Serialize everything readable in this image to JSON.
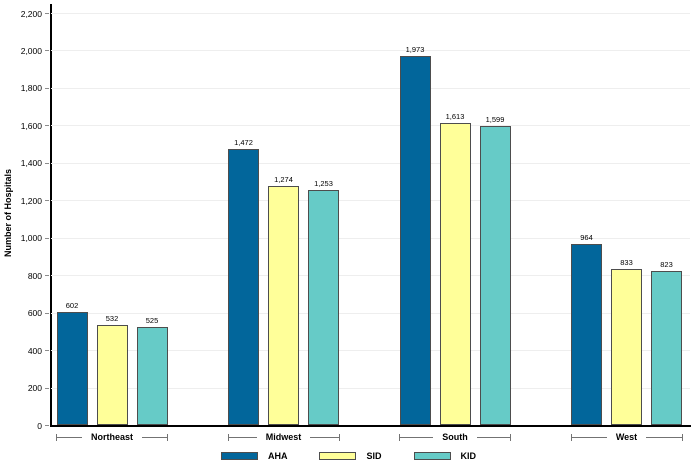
{
  "chart_data": {
    "type": "bar",
    "title": "",
    "xlabel": "",
    "ylabel": "Number of Hospitals",
    "ylim": [
      0,
      2200
    ],
    "ytick_step": 200,
    "grid": true,
    "legend_position": "bottom",
    "categories": [
      "Northeast",
      "Midwest",
      "South",
      "West"
    ],
    "series": [
      {
        "name": "AHA",
        "color": "#02669b",
        "values": [
          602,
          1472,
          1973,
          964
        ]
      },
      {
        "name": "SID",
        "color": "#ffff99",
        "values": [
          532,
          1274,
          1613,
          833
        ]
      },
      {
        "name": "KID",
        "color": "#66cbc7",
        "values": [
          525,
          1253,
          1599,
          823
        ]
      }
    ],
    "colors": {
      "axis": "#000000",
      "gridline": "#eeeeee",
      "bar_border": "#4d4d4d",
      "bracket": "#737373"
    }
  }
}
